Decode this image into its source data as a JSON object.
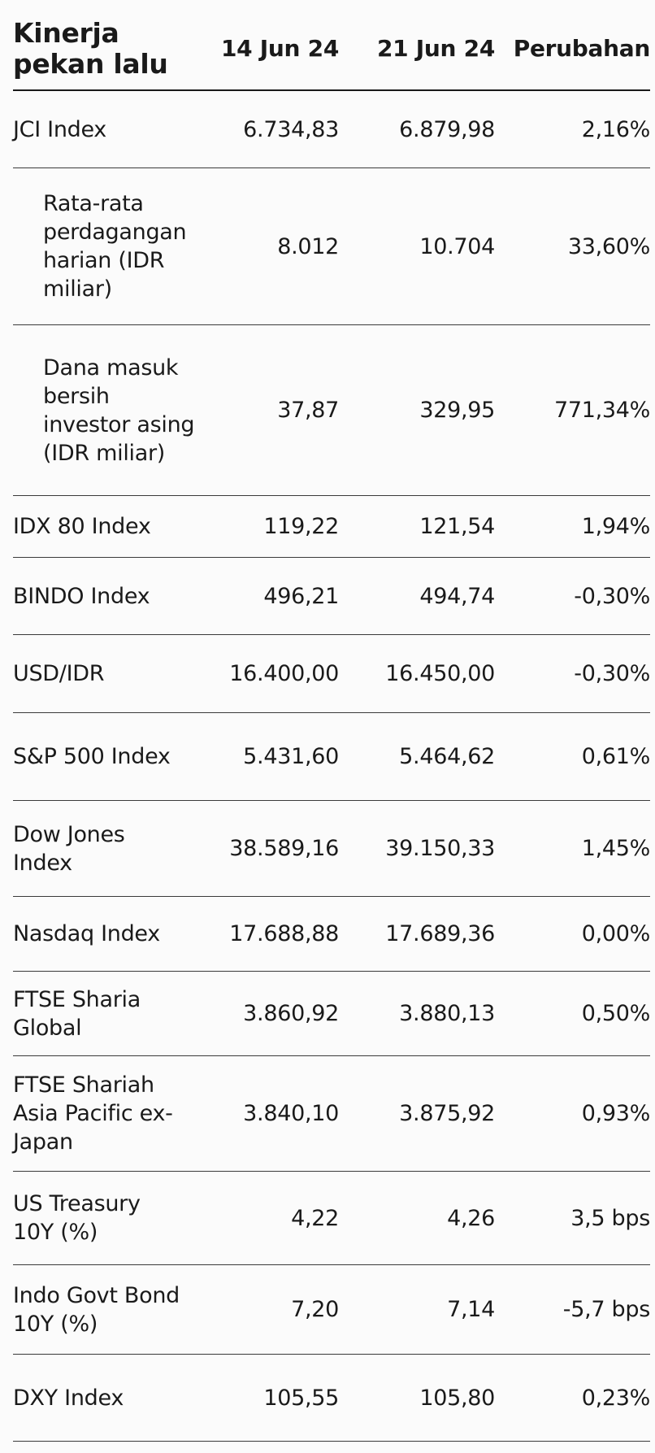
{
  "header": {
    "title": "Kinerja pekan lalu",
    "col1": "14 Jun 24",
    "col2": "21 Jun 24",
    "col3": "Perubahan"
  },
  "rows": [
    {
      "label": "JCI Index",
      "v1": "6.734,83",
      "v2": "6.879,98",
      "v3": "2,16%"
    },
    {
      "label": "Rata-rata perdagangan harian (IDR miliar)",
      "v1": "8.012",
      "v2": "10.704",
      "v3": "33,60%"
    },
    {
      "label": "Dana masuk bersih investor asing (IDR miliar)",
      "v1": "37,87",
      "v2": "329,95",
      "v3": "771,34%"
    },
    {
      "label": "IDX 80 Index",
      "v1": "119,22",
      "v2": "121,54",
      "v3": "1,94%"
    },
    {
      "label": "BINDO Index",
      "v1": "496,21",
      "v2": "494,74",
      "v3": "-0,30%"
    },
    {
      "label": "USD/IDR",
      "v1": "16.400,00",
      "v2": "16.450,00",
      "v3": "-0,30%"
    },
    {
      "label": "S&P 500 Index",
      "v1": "5.431,60",
      "v2": "5.464,62",
      "v3": "0,61%"
    },
    {
      "label": "Dow Jones Index",
      "v1": "38.589,16",
      "v2": "39.150,33",
      "v3": "1,45%"
    },
    {
      "label": "Nasdaq Index",
      "v1": "17.688,88",
      "v2": "17.689,36",
      "v3": "0,00%"
    },
    {
      "label": "FTSE Sharia Global",
      "v1": "3.860,92",
      "v2": "3.880,13",
      "v3": "0,50%"
    },
    {
      "label": "FTSE Shariah Asia Pacific ex-Japan",
      "v1": "3.840,10",
      "v2": "3.875,92",
      "v3": "0,93%"
    },
    {
      "label": "US Treasury 10Y (%)",
      "v1": "4,22",
      "v2": "4,26",
      "v3": "3,5 bps"
    },
    {
      "label": "Indo Govt Bond 10Y (%)",
      "v1": "7,20",
      "v2": "7,14",
      "v3": "-5,7 bps"
    },
    {
      "label": "DXY Index",
      "v1": "105,55",
      "v2": "105,80",
      "v3": "0,23%"
    }
  ]
}
